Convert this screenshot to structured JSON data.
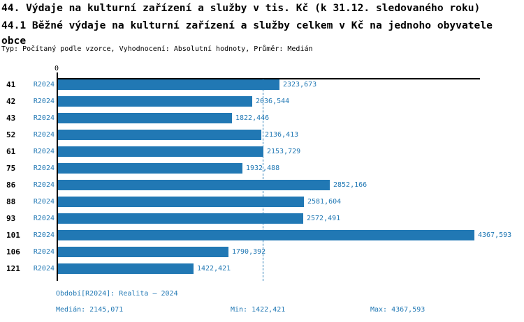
{
  "header": {
    "title": "44. Výdaje na kulturní zařízení a služby v tis. Kč (k 31.12. sledovaného roku)",
    "subtitle": "44.1 Běžné výdaje na kulturní zařízení a služby celkem v Kč na jednoho obyvatele obce",
    "meta": "Typ: Počítaný podle vzorce, Vyhodnocení: Absolutní hodnoty, Průměr: Medián"
  },
  "chart_data": {
    "type": "bar",
    "orientation": "horizontal",
    "title": "44.1 Běžné výdaje na kulturní zařízení a služby celkem v Kč na jednoho obyvatele obce",
    "categories": [
      "41",
      "42",
      "43",
      "52",
      "61",
      "75",
      "86",
      "88",
      "93",
      "101",
      "106",
      "121"
    ],
    "series_label": "R2024",
    "values": [
      2323.673,
      2036.544,
      1822.446,
      2136.413,
      2153.729,
      1932.488,
      2852.166,
      2581.604,
      2572.491,
      4367.593,
      1790.392,
      1422.421
    ],
    "value_labels": [
      "2323,673",
      "2036,544",
      "1822,446",
      "2136,413",
      "2153,729",
      "1932,488",
      "2852,166",
      "2581,604",
      "2572,491",
      "4367,593",
      "1790,392",
      "1422,421"
    ],
    "xlim": [
      0,
      4435
    ],
    "zero_label": "0",
    "grid": false,
    "median_value": 2145.071,
    "bar_color": "#2178b4",
    "label_color": "#2178b4",
    "axis_color": "#000000"
  },
  "footer": {
    "period": "Období[R2024]: Realita – 2024",
    "median": "Medián: 2145,071",
    "min": "Min: 1422,421",
    "max": "Max: 4367,593"
  }
}
